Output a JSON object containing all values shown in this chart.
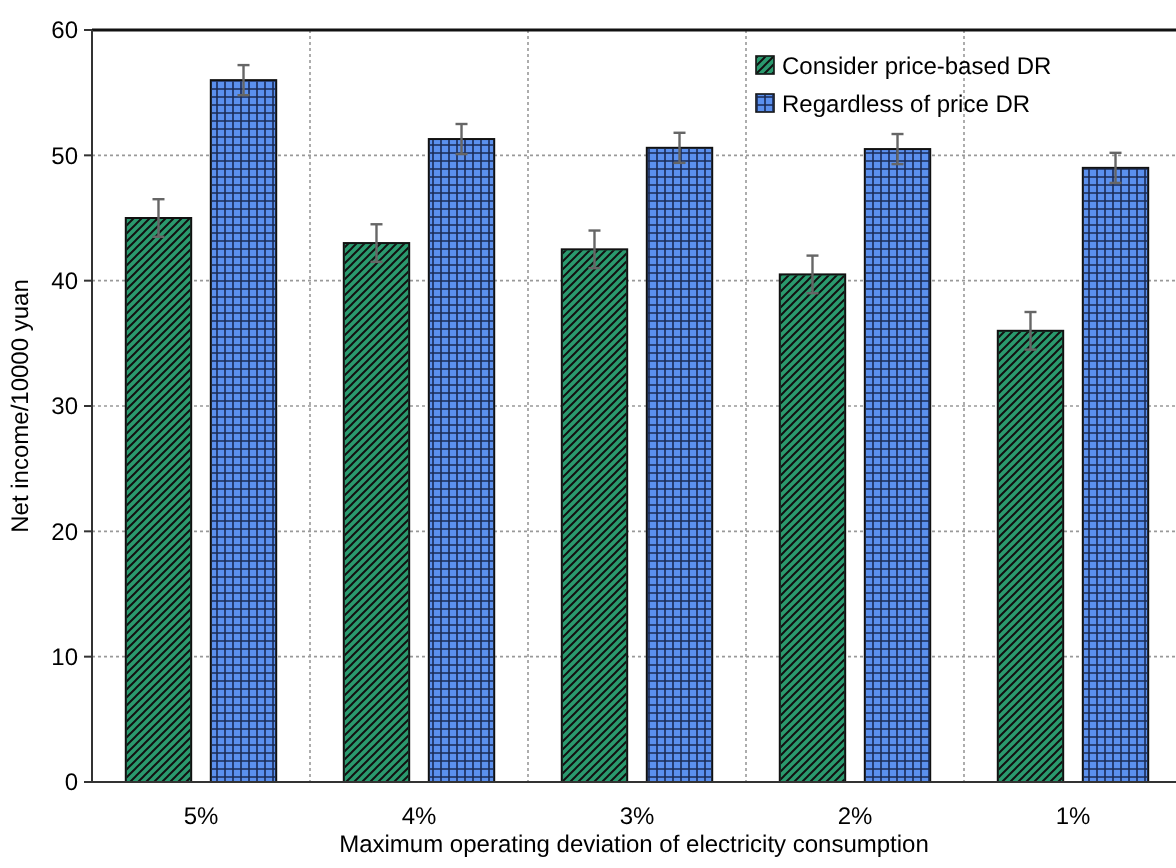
{
  "chart_data": {
    "type": "bar",
    "xlabel": "Maximum operating deviation of electricity consumption",
    "ylabel": "Net income/10000 yuan",
    "categories": [
      "5%",
      "4%",
      "3%",
      "2%",
      "1%"
    ],
    "series": [
      {
        "name": "Consider price-based DR",
        "color": "#2a9a6e",
        "values": [
          45,
          43,
          42.5,
          40.5,
          36
        ],
        "errors": [
          1.5,
          1.5,
          1.5,
          1.5,
          1.5
        ]
      },
      {
        "name": "Regardless of price DR",
        "color": "#5b90ee",
        "values": [
          56,
          51.3,
          50.6,
          50.5,
          49
        ],
        "errors": [
          1.2,
          1.2,
          1.2,
          1.2,
          1.2
        ]
      }
    ],
    "ylim": [
      0,
      60
    ],
    "yticks": [
      0,
      10,
      20,
      30,
      40,
      50,
      60
    ],
    "grid": true,
    "legend": "top right"
  }
}
